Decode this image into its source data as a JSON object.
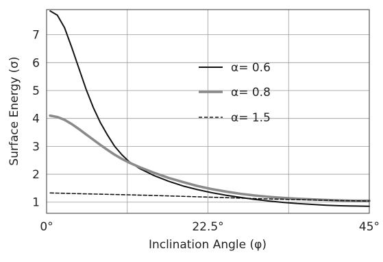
{
  "chart_data": {
    "type": "line",
    "xlabel": "Inclination Angle (φ)",
    "ylabel": "Surface Energy (σ)",
    "xlim": [
      0,
      45
    ],
    "ylim": [
      0.6,
      7.9
    ],
    "x_ticks": [
      {
        "value": 0,
        "label": "0°"
      },
      {
        "value": 22.5,
        "label": "22.5°"
      },
      {
        "value": 45,
        "label": "45°"
      }
    ],
    "y_ticks": [
      {
        "value": 1,
        "label": "1"
      },
      {
        "value": 2,
        "label": "2"
      },
      {
        "value": 3,
        "label": "3"
      },
      {
        "value": 4,
        "label": "4"
      },
      {
        "value": 5,
        "label": "5"
      },
      {
        "value": 6,
        "label": "6"
      },
      {
        "value": 7,
        "label": "7"
      }
    ],
    "x_gridlines": [
      0,
      11.25,
      22.5,
      33.75,
      45
    ],
    "y_gridlines": [
      1,
      2,
      3,
      4,
      5,
      6,
      7
    ],
    "grid": true,
    "legend_position": "upper-right",
    "series": [
      {
        "name": "α= 0.6",
        "color": "#111111",
        "style": "solid-thin",
        "x": [
          0.5,
          1.5,
          2.5,
          3.5,
          4.5,
          5.5,
          6.5,
          7.5,
          8.5,
          9.5,
          10.5,
          11.5,
          13,
          15,
          17,
          19,
          21,
          23,
          25,
          27,
          29,
          31,
          33,
          35,
          37,
          39,
          41,
          43,
          45
        ],
        "y": [
          7.85,
          7.7,
          7.25,
          6.55,
          5.8,
          5.05,
          4.4,
          3.85,
          3.4,
          3.0,
          2.7,
          2.45,
          2.2,
          1.95,
          1.75,
          1.58,
          1.45,
          1.34,
          1.25,
          1.17,
          1.1,
          1.04,
          0.99,
          0.95,
          0.92,
          0.89,
          0.87,
          0.86,
          0.85
        ]
      },
      {
        "name": "α= 0.8",
        "color": "#8a8a8a",
        "style": "solid-thick",
        "x": [
          0.5,
          1.5,
          2.5,
          3.5,
          4.5,
          5.5,
          6.5,
          7.5,
          8.5,
          9.5,
          10.5,
          11.5,
          13,
          15,
          17,
          19,
          21,
          23,
          25,
          27,
          29,
          31,
          33,
          35,
          37,
          39,
          41,
          43,
          45
        ],
        "y": [
          4.1,
          4.05,
          3.95,
          3.8,
          3.62,
          3.43,
          3.24,
          3.05,
          2.87,
          2.7,
          2.55,
          2.42,
          2.25,
          2.05,
          1.87,
          1.72,
          1.58,
          1.47,
          1.38,
          1.3,
          1.24,
          1.19,
          1.15,
          1.12,
          1.1,
          1.08,
          1.06,
          1.05,
          1.05
        ]
      },
      {
        "name": "α= 1.5",
        "color": "#111111",
        "style": "dashed",
        "x": [
          0.5,
          5,
          10,
          15,
          20,
          25,
          30,
          35,
          40,
          45
        ],
        "y": [
          1.33,
          1.3,
          1.27,
          1.24,
          1.2,
          1.16,
          1.12,
          1.09,
          1.06,
          1.04
        ]
      }
    ]
  }
}
